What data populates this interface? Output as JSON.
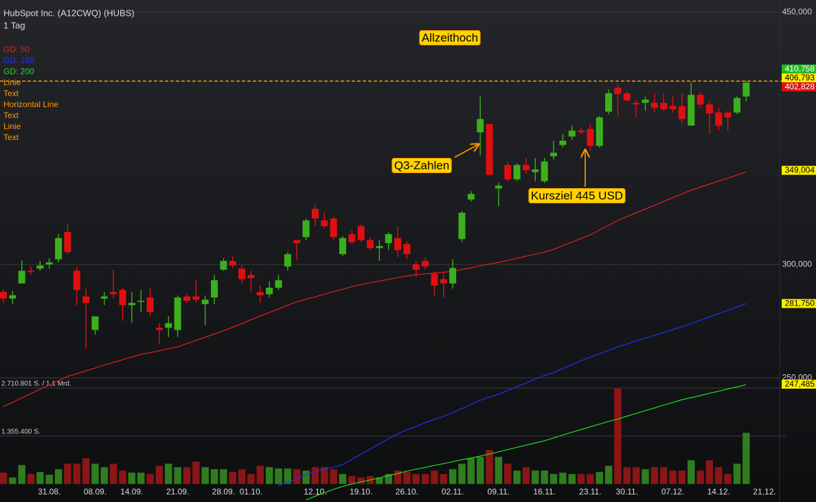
{
  "chart_data": {
    "type": "candlestick",
    "title": "HubSpot Inc. (A12CWQ) (HUBS)",
    "subtitle": "1 Tag",
    "categories": [
      null,
      null,
      null,
      null,
      null,
      "31.08.",
      null,
      null,
      null,
      null,
      "08.09.",
      null,
      null,
      null,
      "14.09.",
      null,
      null,
      null,
      null,
      "21.09.",
      null,
      null,
      null,
      null,
      "28.09.",
      null,
      null,
      "01.10.",
      null,
      null,
      null,
      null,
      null,
      null,
      "12.10.",
      null,
      null,
      null,
      null,
      "19.10.",
      null,
      null,
      null,
      null,
      "26.10.",
      null,
      null,
      null,
      null,
      "02.11.",
      null,
      null,
      null,
      null,
      "09.11.",
      null,
      null,
      null,
      null,
      "16.11.",
      null,
      null,
      null,
      null,
      "23.11.",
      null,
      null,
      null,
      "30.11.",
      null,
      null,
      null,
      null,
      "07.12.",
      null,
      null,
      null,
      null,
      "14.12.",
      null,
      null,
      null,
      null,
      "21.12."
    ],
    "open": [
      287,
      284,
      291,
      297,
      298,
      300,
      302.5,
      316,
      297,
      285,
      270,
      284,
      287,
      288,
      281,
      282.5,
      284.5,
      271,
      271,
      270,
      285,
      285,
      281.5,
      284.5,
      297.5,
      301.7,
      298,
      295,
      287,
      286,
      289,
      299,
      312,
      313.5,
      328,
      322,
      323,
      305,
      315,
      319,
      312,
      308,
      310.5,
      313,
      310,
      300,
      301.7,
      295.5,
      293,
      291,
      312.5,
      333,
      371,
      376,
      339,
      352,
      344,
      352,
      348,
      343,
      357,
      363.5,
      368.5,
      372,
      373,
      363,
      383.5,
      398.5,
      395,
      389,
      389,
      389,
      389,
      387,
      387,
      375,
      394,
      388,
      383,
      383,
      383,
      393,
      null,
      null
    ],
    "high": [
      288,
      287.5,
      302,
      299,
      301.7,
      303,
      315,
      320,
      299,
      288.6,
      276,
      287,
      297.5,
      289,
      287,
      288,
      288.6,
      273,
      276,
      285.4,
      286,
      292.5,
      285.4,
      295,
      303,
      304,
      300,
      297,
      290,
      292,
      295,
      306,
      312,
      323,
      330,
      326,
      324,
      314,
      317,
      320,
      313.5,
      312,
      316,
      319,
      311.5,
      301.7,
      303.5,
      296.5,
      296.5,
      302.5,
      327,
      337.5,
      393,
      376,
      342,
      354,
      353,
      356,
      356,
      356,
      366,
      370,
      375,
      374,
      376,
      381,
      397.5,
      401,
      396,
      391,
      393,
      395,
      395,
      393,
      395,
      402,
      396,
      390,
      386,
      384,
      393,
      403,
      null,
      null
    ],
    "low": [
      282,
      281.5,
      291,
      295,
      297,
      298,
      301,
      305,
      281,
      262,
      268,
      281,
      284,
      274,
      273,
      278,
      276,
      264,
      267,
      267,
      282,
      282,
      272,
      281.5,
      297,
      298.3,
      291,
      287,
      282,
      284.5,
      288,
      297,
      302,
      312,
      319,
      318,
      312,
      304,
      310,
      311,
      307,
      301.7,
      307,
      303.5,
      302.5,
      294,
      297.5,
      285.5,
      284.5,
      288.6,
      311,
      332,
      357.5,
      346,
      329.5,
      343,
      343,
      347,
      343,
      342,
      355,
      362,
      366.5,
      370,
      360,
      362,
      382,
      381,
      390,
      380,
      384,
      383,
      384,
      383,
      376,
      375,
      386,
      370,
      372,
      372,
      382,
      390,
      null,
      null
    ],
    "close": [
      284,
      285.5,
      297,
      296.5,
      299.5,
      301,
      313,
      306,
      288,
      282,
      276,
      285,
      286,
      281,
      282,
      283,
      278,
      270,
      273,
      284.5,
      283,
      283.5,
      283.5,
      292.5,
      301.7,
      299.5,
      293,
      293.5,
      285.5,
      289,
      292.5,
      305,
      310.5,
      322,
      323,
      319,
      313.5,
      313,
      311,
      312,
      308,
      309,
      315,
      307,
      305,
      297.5,
      299,
      290,
      291,
      298.3,
      326,
      336,
      379,
      346.5,
      340.5,
      344,
      352,
      349,
      349.5,
      354,
      359,
      366,
      372,
      371,
      363,
      380,
      395,
      394.5,
      390.5,
      388,
      391,
      386,
      385,
      385,
      379,
      394,
      388,
      382.5,
      375,
      380,
      392,
      401.8,
      null,
      null
    ],
    "up_color": "#3cb01c",
    "down_color": "#e01010",
    "log_scale": true,
    "ylim": [
      204.8,
      458.9
    ],
    "yticks": [
      {
        "value": 250,
        "label": "250,000"
      },
      {
        "value": 300,
        "label": "300,000"
      },
      {
        "value": 450,
        "label": "450,000"
      }
    ],
    "grid": true,
    "series": [
      {
        "name": "GD: 50",
        "color": "#e02020",
        "values": [
          238.7,
          240.4,
          242.1,
          243.8,
          245.5,
          247.2,
          248.9,
          250.6,
          251.7,
          252.9,
          254.0,
          255.2,
          256.3,
          257.4,
          258.6,
          259.6,
          260.4,
          261.1,
          262.0,
          262.8,
          264.2,
          265.5,
          266.9,
          268.3,
          269.7,
          271.2,
          272.8,
          274.5,
          276.1,
          277.7,
          279.3,
          281.0,
          282.5,
          283.7,
          284.8,
          286.0,
          287.2,
          288.3,
          289.5,
          290.5,
          291.3,
          292.1,
          292.9,
          293.7,
          294.5,
          295.1,
          295.5,
          295.9,
          296.3,
          296.7,
          297.6,
          298.4,
          299.3,
          300.2,
          301.0,
          302.0,
          303.0,
          304.0,
          305.0,
          306.0,
          307.4,
          309.2,
          311.0,
          312.8,
          314.6,
          317.1,
          319.5,
          322.0,
          324.0,
          326.0,
          328.0,
          330.0,
          332.0,
          334.0,
          336.0,
          338.0,
          339.7,
          341.4,
          343.0,
          344.7,
          346.4,
          348.0,
          null,
          null
        ]
      },
      {
        "name": "GD: 150",
        "color": "#2233ee",
        "values": [
          null,
          null,
          null,
          null,
          null,
          null,
          null,
          null,
          null,
          null,
          null,
          null,
          null,
          null,
          null,
          null,
          null,
          null,
          null,
          null,
          null,
          null,
          null,
          null,
          null,
          null,
          null,
          null,
          null,
          null,
          210.3,
          211.4,
          212.6,
          213.9,
          215.0,
          216.0,
          216.6,
          217.5,
          219.3,
          221.2,
          223.0,
          224.9,
          226.7,
          228.6,
          230.0,
          231.3,
          232.6,
          233.9,
          235.0,
          236.4,
          238.0,
          239.6,
          241.2,
          242.4,
          243.5,
          245.0,
          246.5,
          248.0,
          249.5,
          251.0,
          252.1,
          253.8,
          255.4,
          257.0,
          258.5,
          259.9,
          261.3,
          262.8,
          264.0,
          265.3,
          266.5,
          267.7,
          268.9,
          270.2,
          271.4,
          272.8,
          274.3,
          275.8,
          277.2,
          278.7,
          280.2,
          281.7,
          null,
          null
        ]
      },
      {
        "name": "GD: 200",
        "color": "#22dd22",
        "values": [
          null,
          null,
          null,
          null,
          null,
          null,
          null,
          null,
          null,
          null,
          null,
          null,
          null,
          null,
          null,
          null,
          null,
          null,
          null,
          null,
          null,
          null,
          null,
          null,
          null,
          null,
          null,
          null,
          null,
          null,
          null,
          null,
          null,
          205.5,
          206.7,
          207.9,
          209.0,
          210.0,
          210.8,
          211.5,
          212.2,
          212.9,
          213.7,
          214.4,
          215.2,
          215.9,
          216.5,
          217.2,
          217.8,
          218.5,
          219.2,
          219.8,
          220.5,
          221.2,
          222.0,
          222.8,
          223.6,
          224.4,
          225.2,
          226.0,
          227.0,
          228.1,
          229.1,
          230.1,
          231.1,
          232.1,
          233.1,
          234.0,
          235.1,
          236.1,
          237.2,
          238.2,
          239.3,
          240.3,
          241.4,
          242.2,
          243.0,
          243.9,
          244.7,
          245.6,
          246.4,
          247.3,
          null,
          null
        ]
      }
    ],
    "drawings": {
      "color": "#ff9a00",
      "names": [
        "Linie",
        "Text",
        "Horizontal Line",
        "Text",
        "Linie",
        "Text"
      ]
    },
    "horizontal_line": {
      "value": 402.828,
      "color": "#ff9a00"
    },
    "price_tags": [
      {
        "value": 410.758,
        "label": "410,758",
        "color": "#22bb22",
        "text_color": "#ffffff"
      },
      {
        "value": 406.793,
        "label": "406,793",
        "color": "#ffee00",
        "text_color": "#000000"
      },
      {
        "value": 402.828,
        "label": "402,828",
        "color": "#dd1111",
        "text_color": "#ffffff"
      },
      {
        "value": 349.004,
        "label": "349,004",
        "color": "#ffee00",
        "text_color": "#000000"
      },
      {
        "value": 281.75,
        "label": "281,750",
        "color": "#ffee00",
        "text_color": "#000000"
      },
      {
        "value": 247.485,
        "label": "247,485",
        "color": "#ffee00",
        "text_color": "#000000"
      }
    ],
    "annotations": [
      {
        "text": "Allzeithoch"
      },
      {
        "text": "Q3-Zahlen"
      },
      {
        "text": "Kursziel 445 USD"
      }
    ],
    "volume": {
      "values": [
        329200,
        193600,
        542200,
        290400,
        348500,
        271100,
        426000,
        580900,
        580900,
        735800,
        580900,
        484100,
        580900,
        387300,
        329200,
        329200,
        290400,
        522800,
        580900,
        484100,
        484100,
        639000,
        484100,
        426000,
        426000,
        348500,
        426000,
        290400,
        522800,
        484100,
        445300,
        445300,
        426000,
        387300,
        484100,
        484100,
        426000,
        290400,
        232400,
        193600,
        232400,
        193600,
        290400,
        387300,
        348500,
        290400,
        290400,
        387300,
        290400,
        426000,
        580900,
        735800,
        774500,
        968200,
        774500,
        580900,
        387300,
        484100,
        387300,
        387300,
        290400,
        329200,
        290400,
        290400,
        290400,
        348500,
        522800,
        2710801,
        484100,
        484100,
        426000,
        484100,
        484100,
        387300,
        387300,
        677700,
        387300,
        677700,
        484100,
        290400,
        580900,
        1452200,
        null,
        null
      ],
      "vlim": [
        0,
        2710801
      ],
      "ticks": [
        {
          "value": 2710801,
          "label": "2.710.801 S. / 1,1 Mrd."
        },
        {
          "value": 1355400,
          "label": "1.355.400 S."
        }
      ],
      "up_color": "#2f7d1c",
      "down_color": "#8a1616"
    }
  }
}
